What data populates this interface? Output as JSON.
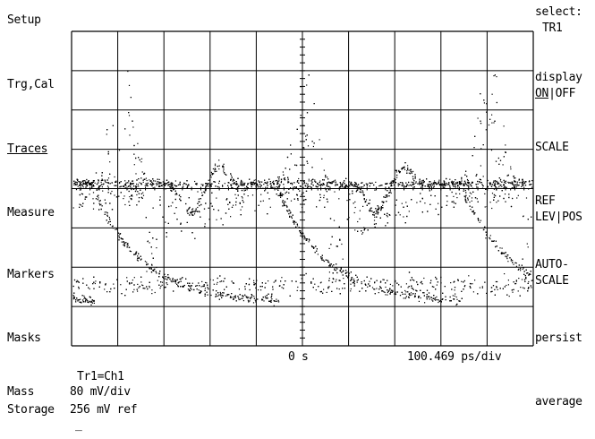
{
  "left_menu": {
    "setup": "Setup",
    "trg_cal": "Trg,Cal",
    "traces": "Traces",
    "measure": "Measure",
    "markers": "Markers",
    "masks": "Masks",
    "mass": "Mass",
    "storage": "Storage"
  },
  "right_menu": {
    "select_label": "select:",
    "select_value": "TR1",
    "display_label": "display",
    "display_on": "ON",
    "display_sep": "|OFF",
    "scale": "SCALE",
    "ref_line1": "REF",
    "ref_line2": "LEV|POS",
    "auto_line1": "AUTO-",
    "auto_line2": "SCALE",
    "persist": "persist",
    "average": "average"
  },
  "status": {
    "time_origin": "0 s",
    "time_scale": "100.469 ps/div",
    "trace_source": "Tr1=Ch1",
    "vertical_scale": "80 mV/div",
    "reference": "256 mV ref",
    "cursor_mark": "_"
  },
  "colors": {
    "background": "#ffffff",
    "grid": "#000000",
    "trace": "#000000"
  }
}
